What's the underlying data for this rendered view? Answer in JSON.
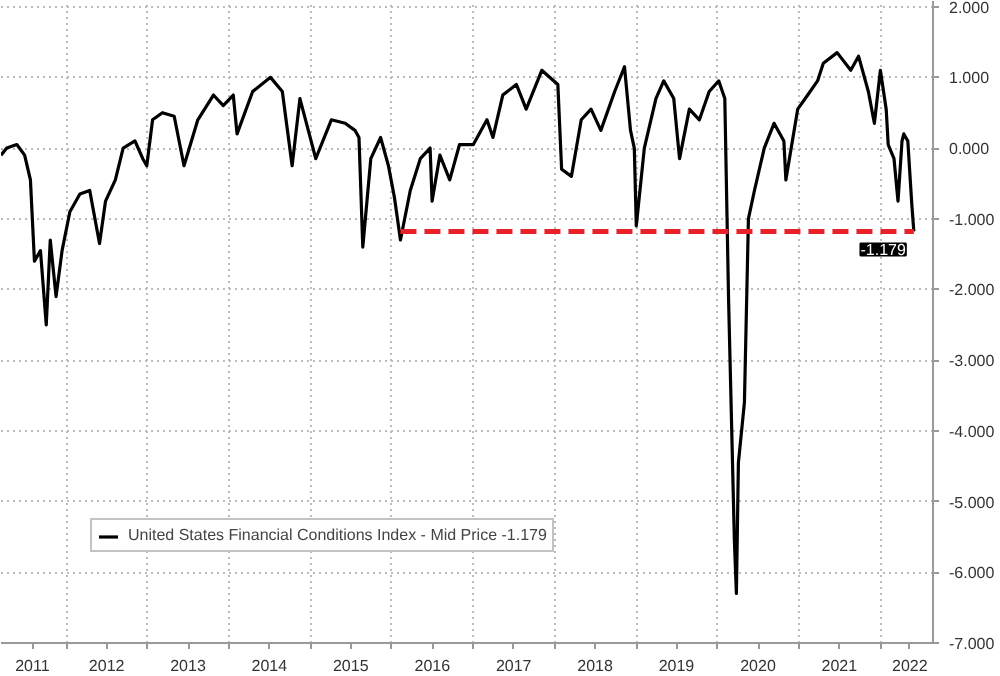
{
  "chart_data": {
    "type": "line",
    "x": [
      "2011-03-15",
      "2011-04-10",
      "2011-05-25",
      "2011-06-29",
      "2011-07-25",
      "2011-08-12",
      "2011-09-08",
      "2011-10-04",
      "2011-10-22",
      "2011-11-17",
      "2011-12-14",
      "2012-01-18",
      "2012-03-03",
      "2012-04-16",
      "2012-05-30",
      "2012-06-26",
      "2012-08-09",
      "2012-09-13",
      "2012-11-05",
      "2012-12-10",
      "2012-12-28",
      "2013-01-23",
      "2013-03-08",
      "2013-04-30",
      "2013-06-13",
      "2013-08-14",
      "2013-10-23",
      "2013-12-06",
      "2014-01-20",
      "2014-02-06",
      "2014-04-17",
      "2014-07-06",
      "2014-08-28",
      "2014-10-11",
      "2014-11-15",
      "2015-01-25",
      "2015-04-05",
      "2015-06-06",
      "2015-07-20",
      "2015-08-07",
      "2015-08-24",
      "2015-09-29",
      "2015-11-12",
      "2015-12-17",
      "2016-01-13",
      "2016-02-09",
      "2016-03-24",
      "2016-05-08",
      "2016-06-21",
      "2016-06-30",
      "2016-08-04",
      "2016-09-17",
      "2016-10-31",
      "2017-01-01",
      "2017-03-03",
      "2017-03-30",
      "2017-05-13",
      "2017-07-13",
      "2017-08-26",
      "2017-11-04",
      "2018-01-15",
      "2018-02-01",
      "2018-03-17",
      "2018-04-30",
      "2018-06-13",
      "2018-07-27",
      "2018-09-27",
      "2018-11-10",
      "2018-12-07",
      "2018-12-24",
      "2019-01-02",
      "2019-02-07",
      "2019-03-31",
      "2019-05-05",
      "2019-06-19",
      "2019-07-15",
      "2019-08-28",
      "2019-10-12",
      "2019-11-25",
      "2020-01-07",
      "2020-02-03",
      "2020-02-20",
      "2020-03-17",
      "2020-03-26",
      "2020-04-04",
      "2020-05-01",
      "2020-05-19",
      "2020-06-15",
      "2020-07-29",
      "2020-09-11",
      "2020-10-25",
      "2020-11-03",
      "2020-12-26",
      "2021-02-09",
      "2021-03-25",
      "2021-04-20",
      "2021-06-21",
      "2021-08-21",
      "2021-09-25",
      "2021-11-08",
      "2021-12-05",
      "2022-01-01",
      "2022-01-27",
      "2022-02-05",
      "2022-03-03",
      "2022-03-21",
      "2022-04-08",
      "2022-04-16",
      "2022-05-04",
      "2022-05-22",
      "2022-05-31"
    ],
    "series": [
      {
        "name": "United States Financial Conditions Index - Mid Price -1.179",
        "color": "#000000",
        "values": [
          -0.1,
          0.0,
          0.05,
          -0.1,
          -0.45,
          -1.6,
          -1.45,
          -2.5,
          -1.3,
          -2.1,
          -1.45,
          -0.9,
          -0.65,
          -0.6,
          -1.35,
          -0.75,
          -0.45,
          0.0,
          0.1,
          -0.15,
          -0.25,
          0.4,
          0.5,
          0.45,
          -0.25,
          0.4,
          0.75,
          0.6,
          0.75,
          0.2,
          0.8,
          1.0,
          0.8,
          -0.25,
          0.7,
          -0.15,
          0.4,
          0.35,
          0.25,
          0.15,
          -1.4,
          -0.15,
          0.15,
          -0.25,
          -0.7,
          -1.3,
          -0.6,
          -0.15,
          0.0,
          -0.75,
          -0.1,
          -0.45,
          0.05,
          0.05,
          0.4,
          0.15,
          0.75,
          0.9,
          0.55,
          1.1,
          0.9,
          -0.3,
          -0.4,
          0.4,
          0.55,
          0.25,
          0.8,
          1.15,
          0.25,
          0.0,
          -1.1,
          0.0,
          0.7,
          0.95,
          0.7,
          -0.15,
          0.55,
          0.4,
          0.8,
          0.95,
          0.7,
          -2.15,
          -5.55,
          -6.3,
          -4.45,
          -3.6,
          -1.0,
          -0.6,
          0.0,
          0.35,
          0.1,
          -0.45,
          0.55,
          0.75,
          0.95,
          1.2,
          1.35,
          1.1,
          1.3,
          0.8,
          0.35,
          1.1,
          0.55,
          0.05,
          -0.15,
          -0.75,
          0.1,
          0.2,
          0.1,
          -0.8,
          -1.179
        ]
      },
      {
        "color": "#e8202a",
        "line_style": "dashed",
        "x": [
          "2016-02-09",
          "2022-05-31"
        ],
        "values": [
          -1.179,
          -1.179
        ]
      }
    ],
    "annotations": [
      {
        "text": "-1.179",
        "x": "2022-05-31",
        "y": -1.179
      }
    ],
    "xlim": [
      "2011-03-15",
      "2022-08-25"
    ],
    "xticks": [
      {
        "value": "2011-08-03",
        "label": "2011"
      },
      {
        "value": "2012-01-01",
        "label": null
      },
      {
        "value": "2012-07-01",
        "label": "2012"
      },
      {
        "value": "2013-01-01",
        "label": null
      },
      {
        "value": "2013-07-01",
        "label": "2013"
      },
      {
        "value": "2014-01-01",
        "label": null
      },
      {
        "value": "2014-07-01",
        "label": "2014"
      },
      {
        "value": "2015-01-01",
        "label": null
      },
      {
        "value": "2015-07-01",
        "label": "2015"
      },
      {
        "value": "2016-01-01",
        "label": null
      },
      {
        "value": "2016-07-01",
        "label": "2016"
      },
      {
        "value": "2017-01-01",
        "label": null
      },
      {
        "value": "2017-07-01",
        "label": "2017"
      },
      {
        "value": "2018-01-01",
        "label": null
      },
      {
        "value": "2018-07-01",
        "label": "2018"
      },
      {
        "value": "2019-01-01",
        "label": null
      },
      {
        "value": "2019-07-01",
        "label": "2019"
      },
      {
        "value": "2020-01-01",
        "label": null
      },
      {
        "value": "2020-07-01",
        "label": "2020"
      },
      {
        "value": "2021-01-01",
        "label": null
      },
      {
        "value": "2021-07-01",
        "label": "2021"
      },
      {
        "value": "2022-01-01",
        "label": null
      },
      {
        "value": "2022-05-13",
        "label": "2022"
      }
    ],
    "ylim": [
      -7.0,
      2.08
    ],
    "yticks": [
      {
        "value": 2,
        "label": "2.000"
      },
      {
        "value": 1,
        "label": "1.000"
      },
      {
        "value": 0,
        "label": "0.000"
      },
      {
        "value": -1,
        "label": "-1.000"
      },
      {
        "value": -2,
        "label": "-2.000"
      },
      {
        "value": -3,
        "label": "-3.000"
      },
      {
        "value": -4,
        "label": "-4.000"
      },
      {
        "value": -5,
        "label": "-5.000"
      },
      {
        "value": -6,
        "label": "-6.000"
      },
      {
        "value": -7,
        "label": "-7.000"
      }
    ],
    "grid": true,
    "legend": "bottom left",
    "line_style": "solid"
  }
}
